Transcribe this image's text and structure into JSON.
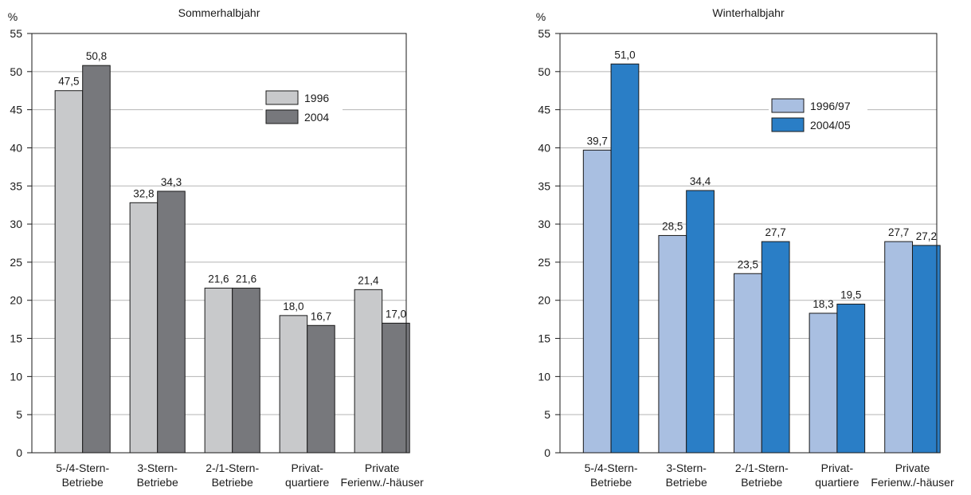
{
  "chart_data": [
    {
      "type": "bar",
      "title": "Sommerhalbjahr",
      "ylabel": "%",
      "ylim": [
        0,
        55
      ],
      "yticks": [
        0,
        5,
        10,
        15,
        20,
        25,
        30,
        35,
        40,
        45,
        50,
        55
      ],
      "grid": true,
      "legend": "top-right",
      "categories": [
        [
          "5-/4-Stern-",
          "Betriebe"
        ],
        [
          "3-Stern-",
          "Betriebe"
        ],
        [
          "2-/1-Stern-",
          "Betriebe"
        ],
        [
          "Privat-",
          "quartiere"
        ],
        [
          "Private",
          "Ferienw./-häuser"
        ]
      ],
      "series": [
        {
          "name": "1996",
          "color": "#c8c9cb",
          "values": [
            47.5,
            32.8,
            21.6,
            18.0,
            21.4
          ],
          "labels": [
            "47,5",
            "32,8",
            "21,6",
            "18,0",
            "21,4"
          ]
        },
        {
          "name": "2004",
          "color": "#77787c",
          "values": [
            50.8,
            34.3,
            21.6,
            16.7,
            17.0
          ],
          "labels": [
            "50,8",
            "34,3",
            "21,6",
            "16,7",
            "17,0"
          ]
        }
      ]
    },
    {
      "type": "bar",
      "title": "Winterhalbjahr",
      "ylabel": "%",
      "ylim": [
        0,
        55
      ],
      "yticks": [
        0,
        5,
        10,
        15,
        20,
        25,
        30,
        35,
        40,
        45,
        50,
        55
      ],
      "grid": true,
      "legend": "top-right",
      "categories": [
        [
          "5-/4-Stern-",
          "Betriebe"
        ],
        [
          "3-Stern-",
          "Betriebe"
        ],
        [
          "2-/1-Stern-",
          "Betriebe"
        ],
        [
          "Privat-",
          "quartiere"
        ],
        [
          "Private",
          "Ferienw./-häuser"
        ]
      ],
      "series": [
        {
          "name": "1996/97",
          "color": "#a9bfe1",
          "values": [
            39.7,
            28.5,
            23.5,
            18.3,
            27.7
          ],
          "labels": [
            "39,7",
            "28,5",
            "23,5",
            "18,3",
            "27,7"
          ]
        },
        {
          "name": "2004/05",
          "color": "#2a7ec6",
          "values": [
            51.0,
            34.4,
            27.7,
            19.5,
            27.2
          ],
          "labels": [
            "51,0",
            "34,4",
            "27,7",
            "19,5",
            "27,2"
          ]
        }
      ]
    }
  ]
}
